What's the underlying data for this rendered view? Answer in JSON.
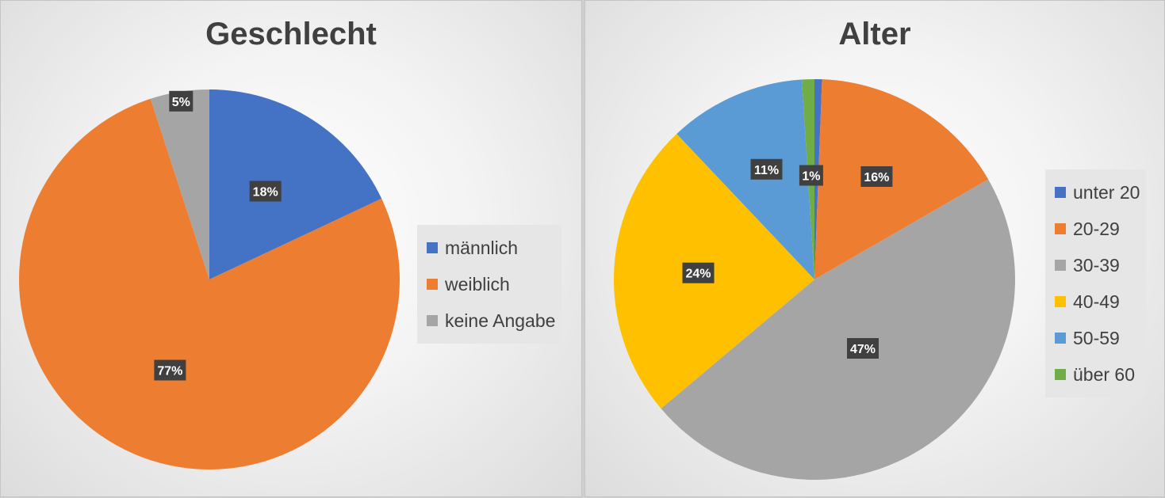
{
  "chart_data": [
    {
      "type": "pie",
      "title": "Geschlecht",
      "categories": [
        "männlich",
        "weiblich",
        "keine Angabe"
      ],
      "values": [
        18,
        77,
        5
      ],
      "data_labels": [
        "18%",
        "77%",
        "5%"
      ],
      "colors": [
        "#4472c4",
        "#ed7d31",
        "#a5a5a5"
      ],
      "legend": "right"
    },
    {
      "type": "pie",
      "title": "Alter",
      "categories": [
        "unter 20",
        "20-29",
        "30-39",
        "40-49",
        "50-59",
        "über 60"
      ],
      "values": [
        0.6,
        16,
        47,
        24,
        11,
        1
      ],
      "data_labels": [
        "",
        "16%",
        "47%",
        "24%",
        "11%",
        "1%"
      ],
      "colors": [
        "#4472c4",
        "#ed7d31",
        "#a5a5a5",
        "#ffc000",
        "#5b9bd5",
        "#70ad47"
      ],
      "legend": "right"
    }
  ]
}
